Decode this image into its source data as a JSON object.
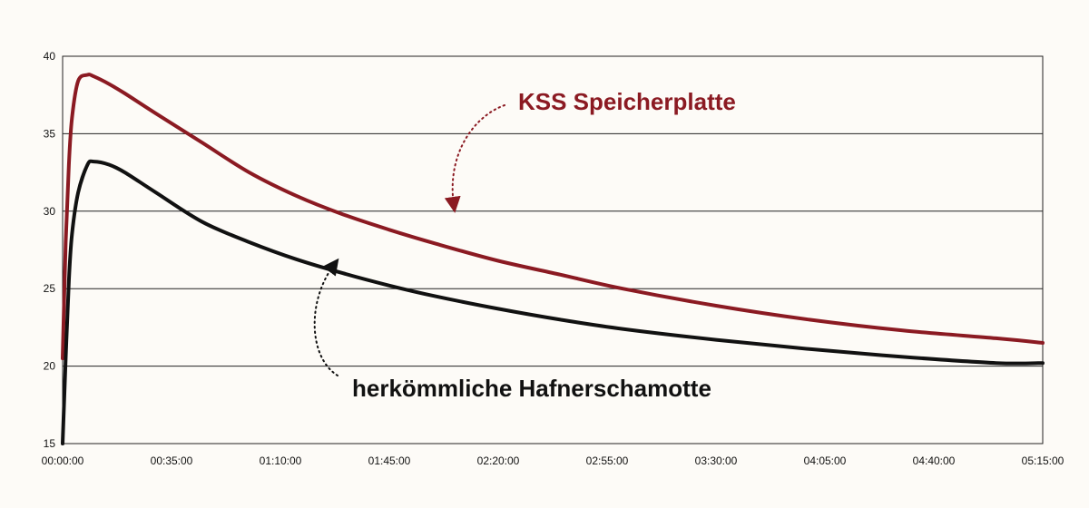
{
  "chart_data": {
    "type": "line",
    "title": "",
    "xlabel": "",
    "ylabel": "",
    "x_ticks": [
      "00:00:00",
      "00:35:00",
      "01:10:00",
      "01:45:00",
      "02:20:00",
      "02:55:00",
      "03:30:00",
      "04:05:00",
      "04:40:00",
      "05:15:00"
    ],
    "ylim": [
      15,
      40
    ],
    "y_ticks": [
      15,
      20,
      25,
      30,
      35,
      40
    ],
    "grid": "horizontal",
    "x": [
      "00:00:00",
      "00:01:00",
      "00:02:00",
      "00:03:00",
      "00:05:00",
      "00:08:00",
      "00:10:00",
      "00:15:00",
      "00:20:00",
      "00:30:00",
      "00:45:00",
      "01:00:00",
      "01:15:00",
      "01:30:00",
      "01:45:00",
      "02:00:00",
      "02:20:00",
      "02:40:00",
      "03:00:00",
      "03:30:00",
      "04:00:00",
      "04:30:00",
      "05:00:00",
      "05:15:00"
    ],
    "series": [
      {
        "name": "KSS Speicherplatte",
        "color": "#8b1a22",
        "values": [
          20.5,
          28.0,
          33.0,
          36.0,
          38.4,
          38.8,
          38.7,
          38.2,
          37.6,
          36.3,
          34.4,
          32.5,
          31.0,
          29.8,
          28.8,
          27.9,
          26.8,
          25.9,
          25.0,
          23.9,
          23.0,
          22.3,
          21.8,
          21.5
        ]
      },
      {
        "name": "herkömmliche Hafnerschamotte",
        "color": "#111111",
        "values": [
          15.0,
          20.5,
          25.5,
          28.5,
          31.2,
          33.0,
          33.2,
          33.0,
          32.5,
          31.2,
          29.3,
          28.0,
          26.9,
          26.0,
          25.2,
          24.5,
          23.7,
          23.0,
          22.4,
          21.7,
          21.1,
          20.6,
          20.2,
          20.2
        ]
      }
    ],
    "annotations": [
      {
        "text": "KSS Speicherplatte",
        "color": "#8b1a22"
      },
      {
        "text": "herkömmliche Hafnerschamotte",
        "color": "#111111"
      }
    ]
  }
}
